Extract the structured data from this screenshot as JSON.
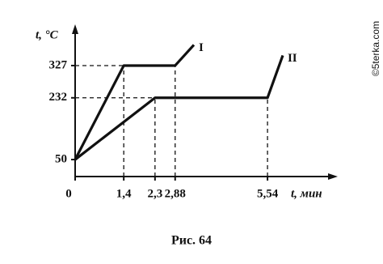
{
  "chart_data": {
    "type": "line",
    "ylabel": "t, °C",
    "xlabel": "t, мин",
    "caption": "Рис. 64",
    "series": [
      {
        "name": "I",
        "color": "#111111",
        "x": [
          0,
          1.4,
          2.88,
          3.42
        ],
        "values": [
          50,
          327,
          327,
          388
        ]
      },
      {
        "name": "II",
        "color": "#111111",
        "x": [
          0,
          2.3,
          5.54,
          5.98
        ],
        "values": [
          50,
          232,
          232,
          357
        ]
      }
    ],
    "xlim": [
      0,
      7.4
    ],
    "ylim": [
      0,
      420
    ],
    "xticks": [
      0,
      {
        "value": 1.4,
        "label": "1,4"
      },
      {
        "value": 2.3,
        "label": "2,3"
      },
      {
        "value": 2.88,
        "label": "2,88"
      },
      {
        "value": 5.54,
        "label": "5,54"
      }
    ],
    "yticks": [
      50,
      232,
      327
    ],
    "watermark": "©5terka.com"
  }
}
